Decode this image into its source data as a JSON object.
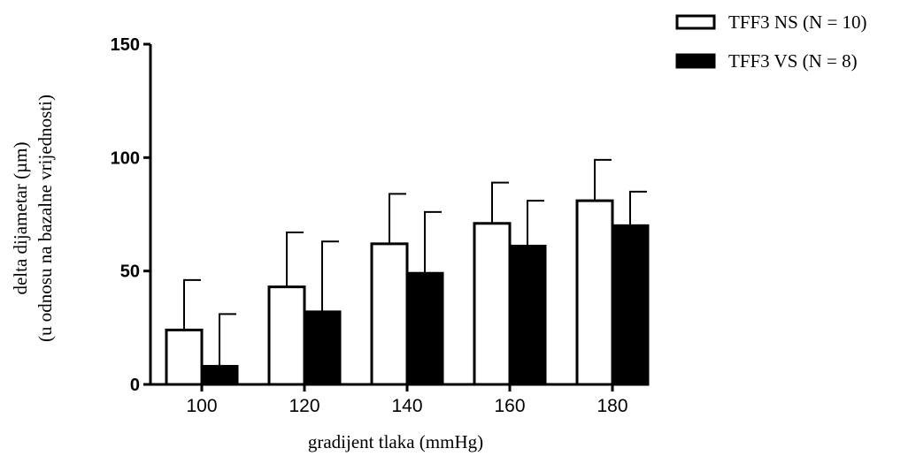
{
  "chart_data": {
    "type": "bar",
    "categories": [
      "100",
      "120",
      "140",
      "160",
      "180"
    ],
    "series": [
      {
        "name": "TFF3 NS (N = 10)",
        "values": [
          24,
          43,
          62,
          71,
          81
        ],
        "error_upper": [
          46,
          67,
          84,
          89,
          99
        ],
        "fill": "#ffffff"
      },
      {
        "name": "TFF3 VS (N = 8)",
        "values": [
          8,
          32,
          49,
          61,
          70
        ],
        "error_upper": [
          31,
          63,
          76,
          81,
          85
        ],
        "fill": "#000000"
      }
    ],
    "xlabel": "gradijent tlaka (mmHg)",
    "ylabel_lines": [
      "delta dijametar (µm)",
      "(u odnosu na bazalne vrijednosti)"
    ],
    "ylim": [
      0,
      150
    ],
    "yticks": [
      "0",
      "50",
      "100",
      "150"
    ],
    "grid": false,
    "legend_position": "top-right"
  }
}
